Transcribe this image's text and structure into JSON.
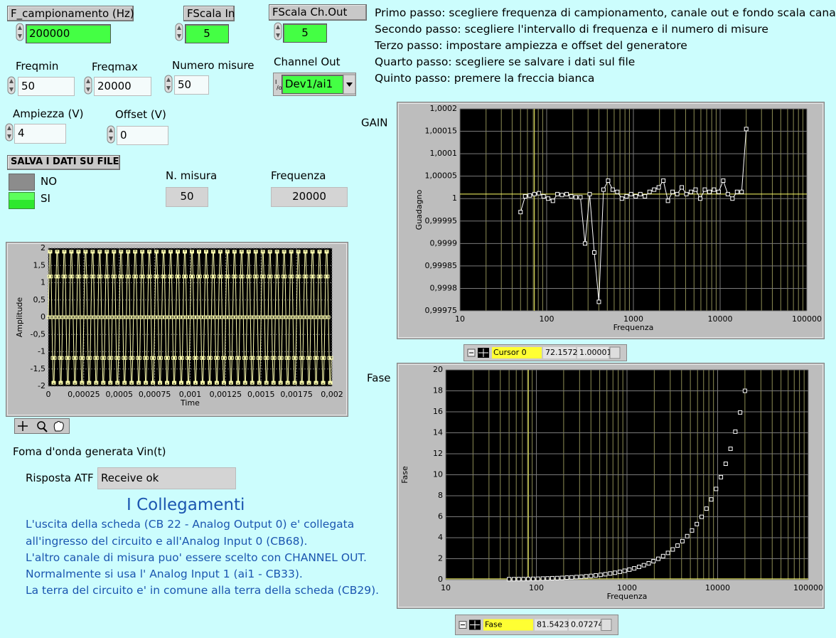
{
  "controls": {
    "f_campionamento": {
      "label": "F_campionamento (Hz)",
      "value": 200000
    },
    "fscala_in": {
      "label": "FScala In",
      "value": 5
    },
    "fscala_out": {
      "label": "FScala Ch.Out",
      "value": 5
    },
    "freqmin": {
      "label": "Freqmin",
      "value": 50
    },
    "freqmax": {
      "label": "Freqmax",
      "value": 20000
    },
    "numero_misure": {
      "label": "Numero misure",
      "value": 50
    },
    "channel_out": {
      "label": "Channel Out",
      "value": "Dev1/ai1"
    },
    "ampiezza": {
      "label": "Ampiezza (V)",
      "value": 4
    },
    "offset": {
      "label": "Offset (V)",
      "value": 0
    },
    "salva": {
      "label": "SALVA I DATI SU FILE",
      "options": [
        "NO",
        "SI"
      ]
    },
    "n_misura": {
      "label": "N. misura",
      "value": 50
    },
    "frequenza": {
      "label": "Frequenza",
      "value": 20000
    }
  },
  "instructions": [
    "Primo passo: scegliere frequenza di campionamento, canale out e fondo scala cana",
    "Secondo passo: scegliere l'intervallo di frequenza e il numero di misure",
    "Terzo passo: impostare ampiezza e offset del generatore",
    "Quarto passo: scegliere se salvare i dati sul file",
    "Quinto passo: premere la freccia bianca"
  ],
  "waveform_caption": "Foma d'onda generata Vin(t)",
  "risposta": {
    "label": "Risposta ATF",
    "value": "Receive ok"
  },
  "collegamenti": {
    "title": "I Collegamenti",
    "lines": [
      "L'uscita della scheda (CB 22 - Analog Output 0) e' collegata",
      "all'ingresso del circuito e all'Analog Input 0 (CB68).",
      "L'altro canale di misura puo' essere scelto con CHANNEL OUT.",
      "Normalmente si usa l' Analog Input 1 (ai1 - CB33).",
      "La terra del circuito e' in comune alla terra della scheda (CB29)."
    ]
  },
  "chart_data": [
    {
      "type": "line",
      "xlabel": "Time",
      "ylabel": "Amplitude",
      "color": "#ffffb0",
      "grid": true,
      "xlim": [
        0,
        0.002
      ],
      "ylim": [
        -2,
        2
      ],
      "xticks": [
        0,
        {
          "value": 0.00025,
          "label": "0,00025"
        },
        {
          "value": 0.0005,
          "label": "0,0005"
        },
        {
          "value": 0.00075,
          "label": "0,00075"
        },
        {
          "value": 0.001,
          "label": "0,001"
        },
        {
          "value": 0.00125,
          "label": "0,00125"
        },
        {
          "value": 0.0015,
          "label": "0,0015"
        },
        {
          "value": 0.00175,
          "label": "0,00175"
        },
        {
          "value": 0.002,
          "label": "0,002"
        }
      ],
      "yticks": [
        2,
        {
          "value": 1.5,
          "label": "1,5"
        },
        1,
        {
          "value": 0.5,
          "label": "0,5"
        },
        0,
        {
          "value": -0.5,
          "label": "-0,5"
        },
        -1,
        {
          "value": -1.5,
          "label": "-1,5"
        },
        -2
      ],
      "t0": 0,
      "dt": 5e-06,
      "values": [
        0,
        1.18,
        1.9,
        1.9,
        1.18,
        0,
        -1.18,
        -1.9,
        -1.9,
        -1.18,
        0,
        1.18,
        1.9,
        1.9,
        1.18,
        0,
        -1.18,
        -1.9,
        -1.9,
        -1.18,
        0,
        1.18,
        1.9,
        1.9,
        1.18,
        0,
        -1.18,
        -1.9,
        -1.9,
        -1.18,
        0,
        1.18,
        1.9,
        1.9,
        1.18,
        0,
        -1.18,
        -1.9,
        -1.9,
        -1.18,
        0,
        1.18,
        1.9,
        1.9,
        1.18,
        0,
        -1.18,
        -1.9,
        -1.9,
        -1.18,
        0,
        1.18,
        1.9,
        1.9,
        1.18,
        0,
        -1.18,
        -1.9,
        -1.9,
        -1.18,
        0,
        1.18,
        1.9,
        1.9,
        1.18,
        0,
        -1.18,
        -1.9,
        -1.9,
        -1.18,
        0,
        1.18,
        1.9,
        1.9,
        1.18,
        0,
        -1.18,
        -1.9,
        -1.9,
        -1.18,
        0,
        1.18,
        1.9,
        1.9,
        1.18,
        0,
        -1.18,
        -1.9,
        -1.9,
        -1.18,
        0,
        1.18,
        1.9,
        1.9,
        1.18,
        0,
        -1.18,
        -1.9,
        -1.9,
        -1.18,
        0,
        1.18,
        1.9,
        1.9,
        1.18,
        0,
        -1.18,
        -1.9,
        -1.9,
        -1.18,
        0,
        1.18,
        1.9,
        1.9,
        1.18,
        0,
        -1.18,
        -1.9,
        -1.9,
        -1.18,
        0,
        1.18,
        1.9,
        1.9,
        1.18,
        0,
        -1.18,
        -1.9,
        -1.9,
        -1.18,
        0,
        1.18,
        1.9,
        1.9,
        1.18,
        0,
        -1.18,
        -1.9,
        -1.9,
        -1.18,
        0,
        1.18,
        1.9,
        1.9,
        1.18,
        0,
        -1.18,
        -1.9,
        -1.9,
        -1.18,
        0,
        1.18,
        1.9,
        1.9,
        1.18,
        0,
        -1.18,
        -1.9,
        -1.9,
        -1.18,
        0,
        1.18,
        1.9,
        1.9,
        1.18,
        0,
        -1.18,
        -1.9,
        -1.9,
        -1.18,
        0,
        1.18,
        1.9,
        1.9,
        1.18,
        0,
        -1.18,
        -1.9,
        -1.9,
        -1.18,
        0,
        1.18,
        1.9,
        1.9,
        1.18,
        0,
        -1.18,
        -1.9,
        -1.9,
        -1.18,
        0,
        1.18,
        1.9,
        1.9,
        1.18,
        0,
        -1.18,
        -1.9,
        -1.9,
        -1.18,
        0,
        1.18,
        1.9,
        1.9,
        1.18,
        0,
        -1.18,
        -1.9,
        -1.9,
        -1.18,
        0,
        1.18,
        1.9,
        1.9,
        1.18,
        0,
        -1.18,
        -1.9,
        -1.9,
        -1.18,
        0,
        1.18,
        1.9,
        1.9,
        1.18,
        0,
        -1.18,
        -1.9,
        -1.9,
        -1.18,
        0,
        1.18,
        1.9,
        1.9,
        1.18,
        0,
        -1.18,
        -1.9,
        -1.9,
        -1.18,
        0,
        1.18,
        1.9,
        1.9,
        1.18,
        0,
        -1.18,
        -1.9,
        -1.9,
        -1.18,
        0,
        1.18,
        1.9,
        1.9,
        1.18,
        0,
        -1.18,
        -1.9,
        -1.9,
        -1.18,
        0,
        1.18,
        1.9,
        1.9,
        1.18,
        0,
        -1.18,
        -1.9,
        -1.9,
        -1.18,
        0,
        1.18,
        1.9,
        1.9,
        1.18,
        0,
        -1.18,
        -1.9,
        -1.9,
        -1.18,
        0,
        1.18,
        1.9,
        1.9,
        1.18,
        0,
        -1.18,
        -1.9,
        -1.9,
        -1.18,
        0,
        1.18,
        1.9,
        1.9,
        1.18,
        0,
        -1.18,
        -1.9,
        -1.9,
        -1.18,
        0,
        1.18,
        1.9,
        1.9,
        1.18,
        0,
        -1.18,
        -1.9,
        -1.9,
        -1.18,
        0,
        1.18,
        1.9,
        1.9,
        1.18,
        0,
        -1.18,
        -1.9,
        -1.9,
        -1.18,
        0,
        1.18,
        1.9,
        1.9,
        1.18,
        0,
        -1.18,
        -1.9,
        -1.9,
        -1.18,
        0,
        1.18,
        1.9,
        1.9,
        1.18,
        0,
        -1.18,
        -1.9,
        -1.9,
        -1.18,
        0,
        1.18,
        1.9,
        1.9,
        1.18,
        0,
        -1.18,
        -1.9,
        -1.9,
        -1.18,
        0,
        1.18,
        1.9,
        1.9,
        1.18,
        0,
        -1.18,
        -1.9,
        -1.9,
        -1.18,
        0,
        1.18,
        1.9,
        1.9,
        1.18,
        0,
        -1.18,
        -1.9,
        -1.9,
        -1.18,
        0,
        1.18,
        1.9,
        1.9,
        1.18,
        0,
        -1.18,
        -1.9,
        -1.9,
        -1.18,
        0,
        1.18,
        1.9,
        1.9,
        1.18,
        0,
        -1.18,
        -1.9,
        -1.9,
        -1.18,
        0,
        1.18,
        1.9,
        1.9,
        1.18,
        0,
        -1.18,
        -1.9,
        -1.9,
        -1.18
      ]
    },
    {
      "type": "line",
      "title": "GAIN",
      "xlabel": "Frequenza",
      "ylabel": "Guadagno",
      "color": "#ffffff",
      "grid": true,
      "xscale": "log",
      "xlim": [
        10,
        100000
      ],
      "ylim": [
        0.99975,
        1.0002
      ],
      "xticks": [
        10,
        100,
        1000,
        10000,
        100000
      ],
      "yticks": [
        {
          "value": 1.0002,
          "label": "1,0002"
        },
        {
          "value": 1.00015,
          "label": "1,00015"
        },
        {
          "value": 1.0001,
          "label": "1,0001"
        },
        {
          "value": 1.00005,
          "label": "1,00005"
        },
        1,
        {
          "value": 0.99995,
          "label": "0,99995"
        },
        {
          "value": 0.9999,
          "label": "0,9999"
        },
        {
          "value": 0.99985,
          "label": "0,99985"
        },
        {
          "value": 0.9998,
          "label": "0,9998"
        },
        {
          "value": 0.99975,
          "label": "0,99975"
        }
      ],
      "x": [
        50,
        56.5,
        63.9,
        72.2,
        81.5,
        92.2,
        104,
        118,
        133,
        150,
        170,
        192,
        217,
        245,
        277,
        313,
        354,
        400,
        452,
        511,
        577,
        652,
        737,
        833,
        941,
        1064,
        1202,
        1358,
        1535,
        1735,
        1960,
        2215,
        2503,
        2829,
        3197,
        3613,
        4083,
        4614,
        5214,
        5892,
        6659,
        7525,
        8504,
        9610,
        10860,
        12273,
        13869,
        15673,
        17712,
        20000
      ],
      "values": [
        0.99997,
        1.000005,
        1.000007,
        1.00001,
        1.000012,
        1.000005,
        1,
        0.999995,
        1.00001,
        1.000008,
        1.00001,
        1.000005,
        1.000003,
        1.000003,
        0.9999,
        1.00001,
        0.99988,
        0.99977,
        1.00002,
        1.00004,
        1.00002,
        1.000015,
        1,
        1.000005,
        1.00001,
        1.000005,
        1.00001,
        1.000005,
        1.000015,
        1.00002,
        1.000025,
        1.00004,
        0.999995,
        1.000015,
        1.00001,
        1.000025,
        1.00001,
        1.000015,
        1.00002,
        1,
        1.00002,
        1.000015,
        1.00002,
        1.000015,
        1.00004,
        1.00001,
        1,
        1.000015,
        1.000015,
        1.000155
      ],
      "cursor": {
        "name": "Cursor 0",
        "x": 72.1572,
        "y": 1.00001,
        "color": "#ffff66"
      }
    },
    {
      "type": "scatter",
      "title": "Fase",
      "xlabel": "Frequenza",
      "ylabel": "Fase",
      "color": "#ffffff",
      "grid": true,
      "xscale": "log",
      "xlim": [
        10,
        100000
      ],
      "ylim": [
        0,
        20
      ],
      "xticks": [
        10,
        100,
        1000,
        10000,
        100000
      ],
      "yticks": [
        0,
        2,
        4,
        6,
        8,
        10,
        12,
        14,
        16,
        18,
        20
      ],
      "x": [
        50,
        56.5,
        63.9,
        72.2,
        81.5,
        92.2,
        104,
        118,
        133,
        150,
        170,
        192,
        217,
        245,
        277,
        313,
        354,
        400,
        452,
        511,
        577,
        652,
        737,
        833,
        941,
        1064,
        1202,
        1358,
        1535,
        1735,
        1960,
        2215,
        2503,
        2829,
        3197,
        3613,
        4083,
        4614,
        5214,
        5892,
        6659,
        7525,
        8504,
        9610,
        10860,
        12273,
        13869,
        15673,
        17712,
        20000
      ],
      "values": [
        0.05,
        0.05,
        0.06,
        0.06,
        0.07,
        0.08,
        0.09,
        0.11,
        0.12,
        0.14,
        0.15,
        0.17,
        0.2,
        0.22,
        0.25,
        0.28,
        0.32,
        0.36,
        0.41,
        0.46,
        0.52,
        0.59,
        0.66,
        0.75,
        0.85,
        0.96,
        1.08,
        1.22,
        1.38,
        1.56,
        1.76,
        1.99,
        2.25,
        2.55,
        2.88,
        3.25,
        3.67,
        4.15,
        4.69,
        5.3,
        5.99,
        6.77,
        7.65,
        8.65,
        9.77,
        11.05,
        12.48,
        14.11,
        15.94,
        18
      ],
      "cursor": {
        "name": "Fase",
        "x": 81.5423,
        "y": 0.07274,
        "color": "#ffff66"
      }
    }
  ]
}
